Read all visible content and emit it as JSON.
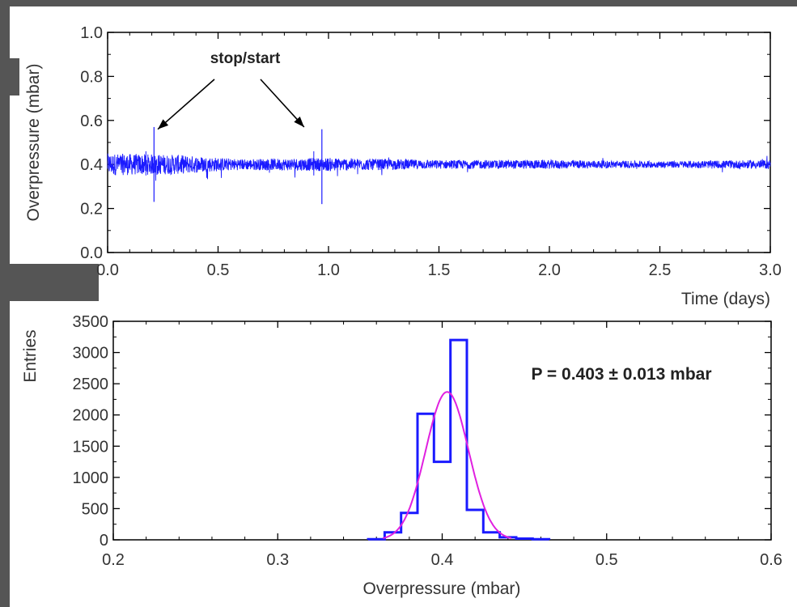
{
  "chart_data": [
    {
      "type": "line",
      "xlabel": "Time (days)",
      "ylabel": "Overpressure (mbar)",
      "xlim": [
        0.0,
        3.0
      ],
      "ylim": [
        0.0,
        1.0
      ],
      "xticks": [
        "0.0",
        "0.5",
        "1.0",
        "1.5",
        "2.0",
        "2.5",
        "3.0"
      ],
      "yticks": [
        "0.0",
        "0.2",
        "0.4",
        "0.6",
        "0.8",
        "1.0"
      ],
      "annotation": "stop/start",
      "annotation_targets_x": [
        0.22,
        0.97
      ],
      "series": [
        {
          "color": "#1a1aff",
          "baseline": 0.4,
          "spikes": [
            {
              "x": 0.21,
              "min": 0.23,
              "max": 0.57
            },
            {
              "x": 0.97,
              "min": 0.22,
              "max": 0.56
            }
          ],
          "noise_envelope": [
            {
              "x": 0.0,
              "amp": 0.05
            },
            {
              "x": 0.3,
              "amp": 0.045
            },
            {
              "x": 0.6,
              "amp": 0.025
            },
            {
              "x": 1.0,
              "amp": 0.03
            },
            {
              "x": 1.5,
              "amp": 0.02
            },
            {
              "x": 2.0,
              "amp": 0.02
            },
            {
              "x": 2.5,
              "amp": 0.015
            },
            {
              "x": 3.0,
              "amp": 0.02
            }
          ]
        }
      ]
    },
    {
      "type": "bar",
      "xlabel": "Overpressure (mbar)",
      "ylabel": "Entries",
      "xlim": [
        0.2,
        0.6
      ],
      "ylim": [
        0,
        3500
      ],
      "xticks": [
        "0.2",
        "0.3",
        "0.4",
        "0.5",
        "0.6"
      ],
      "yticks": [
        "0",
        "500",
        "1000",
        "1500",
        "2000",
        "2500",
        "3000",
        "3500"
      ],
      "annotation": "P = 0.403 ± 0.013 mbar",
      "histogram": {
        "color": "#1a1aff",
        "bin_edges": [
          0.355,
          0.365,
          0.375,
          0.385,
          0.395,
          0.405,
          0.415,
          0.425,
          0.435,
          0.445,
          0.455,
          0.465
        ],
        "counts": [
          10,
          120,
          430,
          2020,
          1250,
          3200,
          480,
          120,
          40,
          20,
          10
        ]
      },
      "fit": {
        "color": "#e020e0",
        "mean": 0.403,
        "sigma": 0.013,
        "amplitude": 2370
      }
    }
  ]
}
